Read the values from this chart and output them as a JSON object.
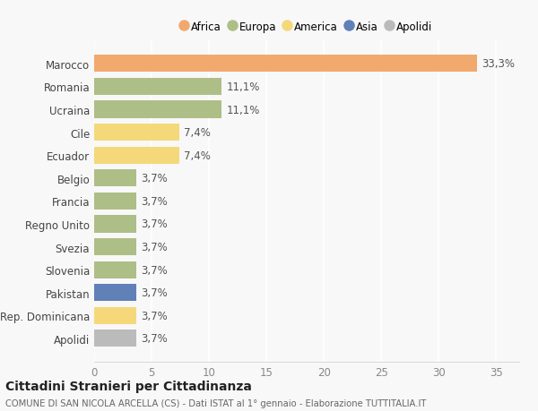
{
  "categories": [
    "Marocco",
    "Romania",
    "Ucraina",
    "Cile",
    "Ecuador",
    "Belgio",
    "Francia",
    "Regno Unito",
    "Svezia",
    "Slovenia",
    "Pakistan",
    "Rep. Dominicana",
    "Apolidi"
  ],
  "values": [
    33.3,
    11.1,
    11.1,
    7.4,
    7.4,
    3.7,
    3.7,
    3.7,
    3.7,
    3.7,
    3.7,
    3.7,
    3.7
  ],
  "labels": [
    "33,3%",
    "11,1%",
    "11,1%",
    "7,4%",
    "7,4%",
    "3,7%",
    "3,7%",
    "3,7%",
    "3,7%",
    "3,7%",
    "3,7%",
    "3,7%",
    "3,7%"
  ],
  "colors": [
    "#F2A96E",
    "#AEBE87",
    "#AEBE87",
    "#F5D87A",
    "#F5D87A",
    "#AEBE87",
    "#AEBE87",
    "#AEBE87",
    "#AEBE87",
    "#AEBE87",
    "#6080B8",
    "#F5D87A",
    "#BBBBBB"
  ],
  "legend": [
    {
      "label": "Africa",
      "color": "#F2A96E"
    },
    {
      "label": "Europa",
      "color": "#AEBE87"
    },
    {
      "label": "America",
      "color": "#F5D87A"
    },
    {
      "label": "Asia",
      "color": "#6080B8"
    },
    {
      "label": "Apolidi",
      "color": "#BBBBBB"
    }
  ],
  "xlim": [
    0,
    37
  ],
  "xticks": [
    0,
    5,
    10,
    15,
    20,
    25,
    30,
    35
  ],
  "title": "Cittadini Stranieri per Cittadinanza",
  "subtitle": "COMUNE DI SAN NICOLA ARCELLA (CS) - Dati ISTAT al 1° gennaio - Elaborazione TUTTITALIA.IT",
  "background_color": "#F8F8F8",
  "grid_color": "#FFFFFF",
  "bar_height": 0.75,
  "label_fontsize": 8.5,
  "tick_fontsize": 8.5,
  "ylabel_fontsize": 8.5
}
